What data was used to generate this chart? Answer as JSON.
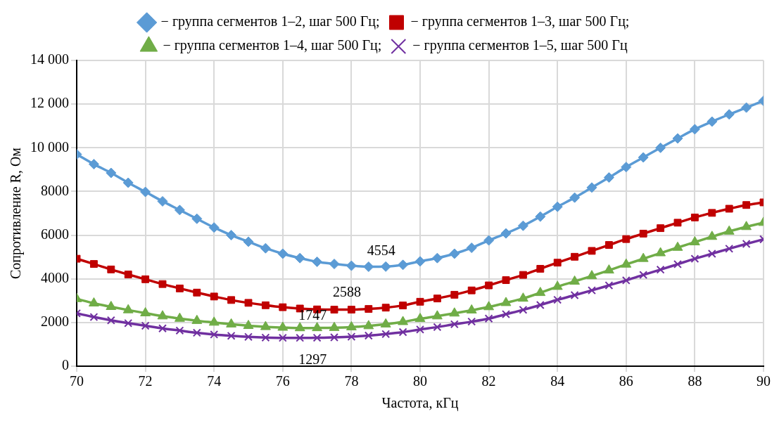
{
  "chart_data": {
    "type": "line",
    "xlabel": "Частота, кГц",
    "ylabel": "Сопротивление R, Ом",
    "x": [
      70,
      70.5,
      71,
      71.5,
      72,
      72.5,
      73,
      73.5,
      74,
      74.5,
      75,
      75.5,
      76,
      76.5,
      77,
      77.5,
      78,
      78.5,
      79,
      79.5,
      80,
      80.5,
      81,
      81.5,
      82,
      82.5,
      83,
      83.5,
      84,
      84.5,
      85,
      85.5,
      86,
      86.5,
      87,
      87.5,
      88,
      88.5,
      89,
      89.5,
      90
    ],
    "series": [
      {
        "name": "− группа сегментов 1–2, шаг 500 Гц;",
        "color": "#5b9bd5",
        "marker": "diamond",
        "values": [
          9700,
          9250,
          8850,
          8400,
          7980,
          7550,
          7150,
          6750,
          6350,
          6000,
          5700,
          5400,
          5150,
          4950,
          4780,
          4680,
          4600,
          4554,
          4560,
          4640,
          4800,
          4950,
          5150,
          5420,
          5760,
          6080,
          6430,
          6850,
          7300,
          7720,
          8180,
          8640,
          9120,
          9560,
          10000,
          10430,
          10850,
          11200,
          11530,
          11840,
          12150
        ]
      },
      {
        "name": "− группа сегментов 1–3, шаг 500 Гц;",
        "color": "#c00000",
        "marker": "square",
        "values": [
          4920,
          4680,
          4430,
          4200,
          3980,
          3760,
          3560,
          3370,
          3190,
          3030,
          2900,
          2790,
          2700,
          2640,
          2600,
          2588,
          2590,
          2620,
          2680,
          2780,
          2950,
          3100,
          3270,
          3470,
          3700,
          3940,
          4180,
          4460,
          4740,
          5010,
          5280,
          5550,
          5820,
          6070,
          6320,
          6570,
          6810,
          7020,
          7210,
          7380,
          7500
        ]
      },
      {
        "name": "− группа сегментов 1–4, шаг 500 Гц;",
        "color": "#70ad47",
        "marker": "triangle",
        "values": [
          3080,
          2880,
          2720,
          2570,
          2430,
          2290,
          2180,
          2080,
          2000,
          1920,
          1850,
          1800,
          1770,
          1747,
          1750,
          1760,
          1790,
          1840,
          1920,
          2030,
          2170,
          2290,
          2420,
          2560,
          2710,
          2900,
          3100,
          3360,
          3640,
          3880,
          4130,
          4390,
          4660,
          4920,
          5180,
          5430,
          5680,
          5930,
          6170,
          6380,
          6570
        ]
      },
      {
        "name": "− группа сегментов 1–5, шаг 500 Гц",
        "color": "#7030a0",
        "marker": "cross",
        "values": [
          2420,
          2250,
          2100,
          1970,
          1850,
          1730,
          1630,
          1530,
          1450,
          1390,
          1340,
          1310,
          1297,
          1297,
          1300,
          1320,
          1350,
          1400,
          1470,
          1560,
          1680,
          1790,
          1920,
          2040,
          2180,
          2380,
          2580,
          2800,
          3040,
          3250,
          3470,
          3700,
          3930,
          4180,
          4420,
          4670,
          4920,
          5150,
          5380,
          5600,
          5810
        ]
      }
    ],
    "xlim": [
      70,
      90
    ],
    "xticks": [
      70,
      72,
      74,
      76,
      78,
      80,
      82,
      84,
      86,
      88,
      90
    ],
    "ylim": [
      0,
      14000
    ],
    "yticks": [
      0,
      2000,
      4000,
      6000,
      8000,
      {
        "value": 10000,
        "label": "10 000"
      },
      {
        "value": 12000,
        "label": "12 000"
      },
      {
        "value": 14000,
        "label": "14 000"
      }
    ],
    "grid": true,
    "legend": "top",
    "line_style": "solid",
    "annotations": [
      {
        "text": "4554",
        "x": 78.5,
        "y": 4554
      },
      {
        "text": "2588",
        "x": 77.5,
        "y": 2588
      },
      {
        "text": "1747",
        "x": 76.5,
        "y": 1747
      },
      {
        "text": "1297",
        "x": 76.5,
        "y": 1297
      }
    ]
  }
}
